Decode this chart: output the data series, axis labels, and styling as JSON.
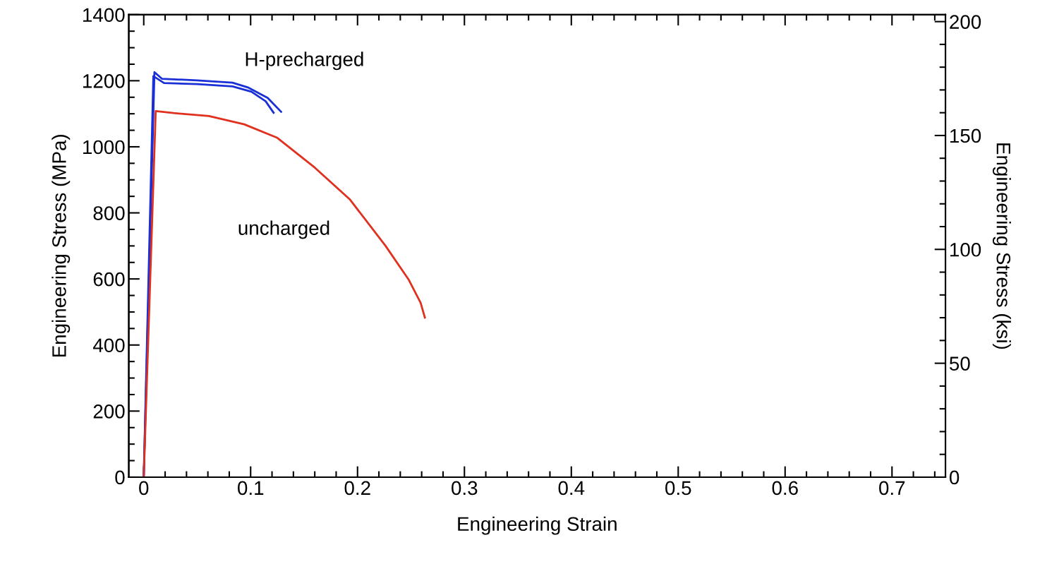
{
  "chart_data": {
    "type": "line",
    "xlabel": "Engineering Strain",
    "ylabel": "Engineering Stress (MPa)",
    "y2label": "Engineering Stress (ksi)",
    "xlim": [
      -0.014,
      0.75
    ],
    "ylim": [
      0,
      1400
    ],
    "y2lim": [
      0,
      203.05
    ],
    "xticks": [
      0,
      {
        "value": 0.02,
        "label": null
      },
      {
        "value": 0.04,
        "label": null
      },
      {
        "value": 0.06,
        "label": null
      },
      {
        "value": 0.08,
        "label": null
      },
      0.1,
      {
        "value": 0.12,
        "label": null
      },
      {
        "value": 0.14,
        "label": null
      },
      {
        "value": 0.16,
        "label": null
      },
      {
        "value": 0.18,
        "label": null
      },
      0.2,
      {
        "value": 0.22,
        "label": null
      },
      {
        "value": 0.24,
        "label": null
      },
      {
        "value": 0.26,
        "label": null
      },
      {
        "value": 0.28,
        "label": null
      },
      0.3,
      {
        "value": 0.32,
        "label": null
      },
      {
        "value": 0.34,
        "label": null
      },
      {
        "value": 0.36,
        "label": null
      },
      {
        "value": 0.38,
        "label": null
      },
      0.4,
      {
        "value": 0.42,
        "label": null
      },
      {
        "value": 0.44,
        "label": null
      },
      {
        "value": 0.46,
        "label": null
      },
      {
        "value": 0.48,
        "label": null
      },
      0.5,
      {
        "value": 0.52,
        "label": null
      },
      {
        "value": 0.54,
        "label": null
      },
      {
        "value": 0.56,
        "label": null
      },
      {
        "value": 0.58,
        "label": null
      },
      0.6,
      {
        "value": 0.62,
        "label": null
      },
      {
        "value": 0.64,
        "label": null
      },
      {
        "value": 0.66,
        "label": null
      },
      {
        "value": 0.68,
        "label": null
      },
      0.7,
      {
        "value": 0.72,
        "label": null
      },
      {
        "value": 0.74,
        "label": null
      }
    ],
    "yticks": [
      0,
      {
        "value": 50,
        "label": null
      },
      {
        "value": 100,
        "label": null
      },
      {
        "value": 150,
        "label": null
      },
      200,
      {
        "value": 250,
        "label": null
      },
      {
        "value": 300,
        "label": null
      },
      {
        "value": 350,
        "label": null
      },
      400,
      {
        "value": 450,
        "label": null
      },
      {
        "value": 500,
        "label": null
      },
      {
        "value": 550,
        "label": null
      },
      600,
      {
        "value": 650,
        "label": null
      },
      {
        "value": 700,
        "label": null
      },
      {
        "value": 750,
        "label": null
      },
      800,
      {
        "value": 850,
        "label": null
      },
      {
        "value": 900,
        "label": null
      },
      {
        "value": 950,
        "label": null
      },
      1000,
      {
        "value": 1050,
        "label": null
      },
      {
        "value": 1100,
        "label": null
      },
      {
        "value": 1150,
        "label": null
      },
      1200,
      {
        "value": 1250,
        "label": null
      },
      {
        "value": 1300,
        "label": null
      },
      {
        "value": 1350,
        "label": null
      },
      1400
    ],
    "y2ticks": [
      0,
      {
        "value": 10,
        "label": null
      },
      {
        "value": 20,
        "label": null
      },
      {
        "value": 30,
        "label": null
      },
      {
        "value": 40,
        "label": null
      },
      50,
      {
        "value": 60,
        "label": null
      },
      {
        "value": 70,
        "label": null
      },
      {
        "value": 80,
        "label": null
      },
      {
        "value": 90,
        "label": null
      },
      100,
      {
        "value": 110,
        "label": null
      },
      {
        "value": 120,
        "label": null
      },
      {
        "value": 130,
        "label": null
      },
      {
        "value": 140,
        "label": null
      },
      150,
      {
        "value": 160,
        "label": null
      },
      {
        "value": 170,
        "label": null
      },
      {
        "value": 180,
        "label": null
      },
      {
        "value": 190,
        "label": null
      },
      200
    ],
    "grid": false,
    "marker": "none",
    "line_style": "solid",
    "annotations": [
      "H-precharged",
      "uncharged"
    ],
    "series": [
      {
        "color": "#1a2fd6",
        "x": [
          0,
          0.01,
          0.017,
          0.05,
          0.083,
          0.098,
          0.116,
          0.1285
        ],
        "values": [
          0,
          1226,
          1206,
          1201,
          1194,
          1179,
          1148,
          1106
        ]
      },
      {
        "color": "#1a2fd6",
        "x": [
          0,
          0.009,
          0.019,
          0.05,
          0.083,
          0.1007,
          0.114,
          0.1215
        ],
        "values": [
          0,
          1214,
          1193,
          1190,
          1183,
          1167,
          1138,
          1103
        ]
      },
      {
        "color": "#e0301e",
        "x": [
          0,
          0.0112,
          0.028,
          0.061,
          0.094,
          0.125,
          0.16,
          0.193,
          0.226,
          0.248,
          0.259,
          0.263
        ],
        "values": [
          0,
          1108,
          1102,
          1093,
          1068,
          1027,
          937,
          840,
          701,
          597,
          528,
          483
        ]
      }
    ]
  }
}
